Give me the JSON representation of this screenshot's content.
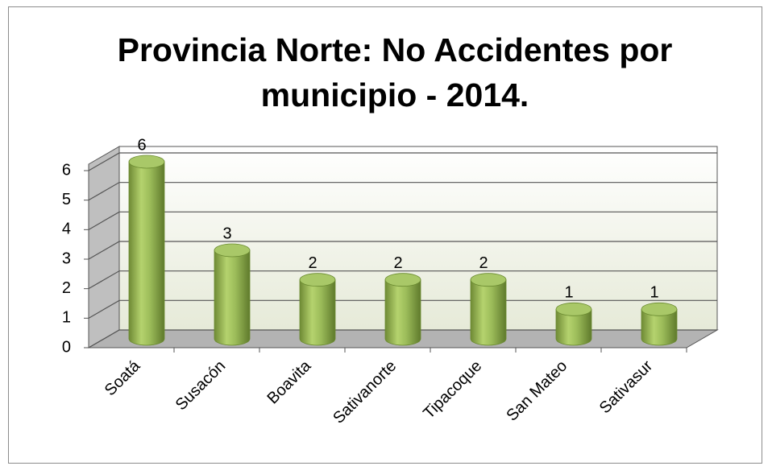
{
  "chart_data": {
    "type": "bar3d",
    "title": "Provincia Norte: No Accidentes por municipio - 2014.",
    "categories": [
      "Soatá",
      "Susacón",
      "Boavita",
      "Sativanorte",
      "Tipacoque",
      "San Mateo",
      "Sativasur"
    ],
    "values": [
      6,
      3,
      2,
      2,
      2,
      1,
      1
    ],
    "color": "#9bbb59",
    "ylim": [
      0,
      6
    ],
    "yticks": [
      0,
      1,
      2,
      3,
      4,
      5,
      6
    ],
    "grid": true
  }
}
